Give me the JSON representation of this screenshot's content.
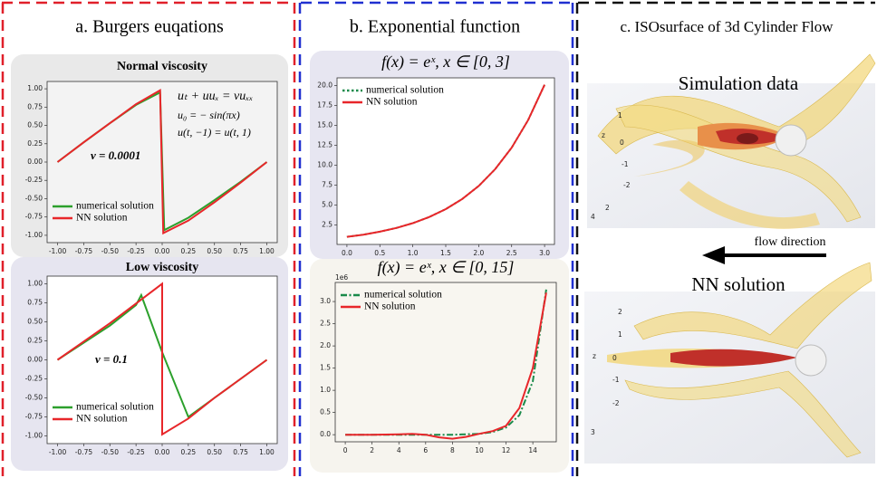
{
  "panels": {
    "a": "a. Burgers euqations",
    "b": "b. Exponential function",
    "c": "c. ISOsurface of 3d Cylinder Flow"
  },
  "cylinder_flow": {
    "top_title": "Simulation data",
    "arrow_label": "flow direction",
    "bottom_title": "NN solution",
    "top_axis_labels": [
      "z",
      "1",
      "0",
      "-1",
      "-2",
      "4",
      "2"
    ],
    "bottom_axis_labels": [
      "2",
      "1",
      "z",
      "0",
      "-1",
      "-2",
      "3"
    ]
  },
  "chart_data": [
    {
      "type": "line",
      "title": "Normal viscosity",
      "annotations": [
        "uₜ + uuₓ = νuₓₓ",
        "u₀ = − sin(πx)",
        "u(t, −1) = u(t, 1)",
        "ν = 0.0001"
      ],
      "xlim": [
        -1.1,
        1.1
      ],
      "ylim": [
        -1.1,
        1.1
      ],
      "xticks": [
        {
          "value": -1,
          "label": "-1.00"
        },
        {
          "value": -0.75,
          "label": "-0.75"
        },
        {
          "value": -0.5,
          "label": "-0.50"
        },
        {
          "value": -0.25,
          "label": "-0.25"
        },
        {
          "value": 0,
          "label": "0.00"
        },
        {
          "value": 0.25,
          "label": "0.25"
        },
        {
          "value": 0.5,
          "label": "0.50"
        },
        {
          "value": 0.75,
          "label": "0.75"
        },
        {
          "value": 1,
          "label": "1.00"
        }
      ],
      "yticks": [
        {
          "value": -1,
          "label": "-1.00"
        },
        {
          "value": -0.75,
          "label": "-0.75"
        },
        {
          "value": -0.5,
          "label": "-0.50"
        },
        {
          "value": -0.25,
          "label": "-0.25"
        },
        {
          "value": 0,
          "label": "0.00"
        },
        {
          "value": 0.25,
          "label": "0.25"
        },
        {
          "value": 0.5,
          "label": "0.50"
        },
        {
          "value": 0.75,
          "label": "0.75"
        },
        {
          "value": 1,
          "label": "1.00"
        }
      ],
      "legend": "lower left",
      "series": [
        {
          "name": "numerical solution",
          "color": "#2ca02c",
          "linestyle": "solid",
          "x": [
            -1,
            -0.75,
            -0.5,
            -0.25,
            -0.02,
            0.02,
            0.25,
            0.5,
            0.75,
            1
          ],
          "values": [
            0,
            0.27,
            0.53,
            0.78,
            0.95,
            -0.93,
            -0.76,
            -0.52,
            -0.27,
            0
          ]
        },
        {
          "name": "NN solution",
          "color": "#e8262a",
          "linestyle": "solid",
          "x": [
            -1,
            -0.75,
            -0.5,
            -0.25,
            -0.02,
            0.01,
            0.25,
            0.5,
            0.75,
            1
          ],
          "values": [
            0,
            0.27,
            0.53,
            0.79,
            0.98,
            -0.97,
            -0.8,
            -0.55,
            -0.28,
            0
          ]
        }
      ]
    },
    {
      "type": "line",
      "title": "Low viscosity",
      "annotations": [
        "ν = 0.1"
      ],
      "xlim": [
        -1.1,
        1.1
      ],
      "ylim": [
        -1.1,
        1.1
      ],
      "xticks": [
        {
          "value": -1,
          "label": "-1.00"
        },
        {
          "value": -0.75,
          "label": "-0.75"
        },
        {
          "value": -0.5,
          "label": "-0.50"
        },
        {
          "value": -0.25,
          "label": "-0.25"
        },
        {
          "value": 0,
          "label": "0.00"
        },
        {
          "value": 0.25,
          "label": "0.25"
        },
        {
          "value": 0.5,
          "label": "0.50"
        },
        {
          "value": 0.75,
          "label": "0.75"
        },
        {
          "value": 1,
          "label": "1.00"
        }
      ],
      "yticks": [
        {
          "value": -1,
          "label": "-1.00"
        },
        {
          "value": -0.75,
          "label": "-0.75"
        },
        {
          "value": -0.5,
          "label": "-0.50"
        },
        {
          "value": -0.25,
          "label": "-0.25"
        },
        {
          "value": 0,
          "label": "0.00"
        },
        {
          "value": 0.25,
          "label": "0.25"
        },
        {
          "value": 0.5,
          "label": "0.50"
        },
        {
          "value": 0.75,
          "label": "0.75"
        },
        {
          "value": 1,
          "label": "1.00"
        }
      ],
      "legend": "lower left",
      "series": [
        {
          "name": "numerical solution",
          "color": "#2ca02c",
          "linestyle": "solid",
          "x": [
            -1,
            -0.5,
            -0.25,
            -0.2,
            0,
            0.25,
            0.5,
            0.75,
            1
          ],
          "values": [
            0,
            0.45,
            0.72,
            0.85,
            0.1,
            -0.75,
            -0.5,
            -0.25,
            0
          ]
        },
        {
          "name": "NN solution",
          "color": "#e8262a",
          "linestyle": "solid",
          "x": [
            -1,
            -0.5,
            -0.25,
            0,
            0,
            0.25,
            0.5,
            0.75,
            1
          ],
          "values": [
            0,
            0.48,
            0.74,
            1.0,
            -0.98,
            -0.77,
            -0.5,
            -0.25,
            0
          ]
        }
      ]
    },
    {
      "type": "line",
      "title": "f(x) = eˣ,   x ∈ [0, 3]",
      "xlim": [
        -0.15,
        3.15
      ],
      "ylim": [
        0.05,
        20.95
      ],
      "xticks": [
        {
          "value": 0,
          "label": "0.0"
        },
        0.5,
        {
          "value": 1,
          "label": "1.0"
        },
        1.5,
        {
          "value": 2,
          "label": "2.0"
        },
        2.5,
        {
          "value": 3,
          "label": "3.0"
        }
      ],
      "yticks": [
        2.5,
        {
          "value": 5,
          "label": "5.0"
        },
        7.5,
        {
          "value": 10,
          "label": "10.0"
        },
        12.5,
        {
          "value": 15,
          "label": "15.0"
        },
        17.5,
        {
          "value": 20,
          "label": "20.0"
        }
      ],
      "legend": "upper left",
      "series": [
        {
          "name": "numerical solution",
          "color": "#1a8a4a",
          "linestyle": "dotted",
          "x": [
            0,
            0.25,
            0.5,
            0.75,
            1,
            1.25,
            1.5,
            1.75,
            2,
            2.25,
            2.5,
            2.75,
            3
          ],
          "values": [
            1,
            1.28,
            1.65,
            2.12,
            2.72,
            3.49,
            4.48,
            5.75,
            7.39,
            9.49,
            12.18,
            15.64,
            20.09
          ]
        },
        {
          "name": "NN solution",
          "color": "#e8262a",
          "linestyle": "solid",
          "x": [
            0,
            0.25,
            0.5,
            0.75,
            1,
            1.25,
            1.5,
            1.75,
            2,
            2.25,
            2.5,
            2.75,
            3
          ],
          "values": [
            1,
            1.28,
            1.65,
            2.12,
            2.72,
            3.49,
            4.48,
            5.75,
            7.39,
            9.49,
            12.18,
            15.64,
            20.09
          ]
        }
      ]
    },
    {
      "type": "line",
      "title": "f(x) = eˣ,   x ∈ [0, 15]",
      "offset_label": "1e6",
      "xlim": [
        -0.75,
        15.75
      ],
      "ylim": [
        -0.16,
        3.43
      ],
      "xticks": [
        0,
        2,
        4,
        6,
        8,
        10,
        12,
        14
      ],
      "yticks": [
        {
          "value": 0,
          "label": "0.0"
        },
        0.5,
        {
          "value": 1,
          "label": "1.0"
        },
        1.5,
        {
          "value": 2,
          "label": "2.0"
        },
        2.5,
        {
          "value": 3,
          "label": "3.0"
        }
      ],
      "legend": "upper left",
      "series": [
        {
          "name": "numerical solution",
          "color": "#1a8a4a",
          "linestyle": "dashdot",
          "x": [
            0,
            2,
            4,
            6,
            8,
            10,
            11,
            12,
            13,
            14,
            15
          ],
          "values": [
            0,
            0,
            0,
            0,
            0,
            0.02,
            0.06,
            0.16,
            0.44,
            1.2,
            3.27
          ]
        },
        {
          "name": "NN solution",
          "color": "#e8262a",
          "linestyle": "solid",
          "x": [
            0,
            2,
            4,
            5,
            6,
            7,
            8,
            9,
            10,
            11,
            12,
            13,
            14,
            15
          ],
          "values": [
            0,
            0,
            0.01,
            0.02,
            0,
            -0.06,
            -0.09,
            -0.05,
            0.02,
            0.08,
            0.2,
            0.6,
            1.5,
            3.2
          ]
        }
      ]
    }
  ]
}
